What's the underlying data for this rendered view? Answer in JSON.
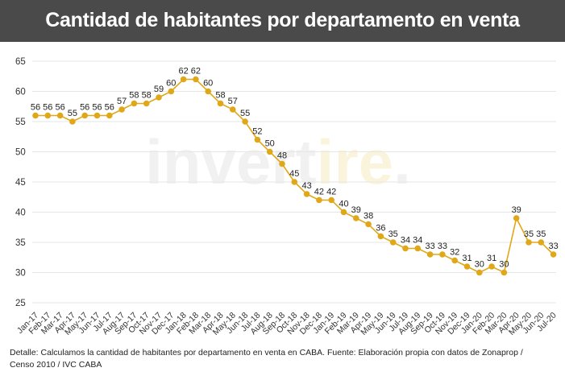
{
  "title": "Cantidad de habitantes por departamento en venta",
  "watermark": {
    "main": "invert",
    "accent": "ire",
    "dot": "."
  },
  "footer": {
    "line1": "Detalle: Calculamos la cantidad de habitantes por departamento en venta en CABA. Fuente: Elaboración propia con datos de Zonaprop /",
    "line2": "Censo 2010 / IVC CABA"
  },
  "colors": {
    "header_bg": "#4a4a4a",
    "line": "#e0a818",
    "marker": "#e0a818",
    "grid": "#e6e6e6"
  },
  "chart_data": {
    "type": "line",
    "categories": [
      "Jan-17",
      "Feb-17",
      "Mar-17",
      "Apr-17",
      "May-17",
      "Jun-17",
      "Jul-17",
      "Aug-17",
      "Sep-17",
      "Oct-17",
      "Nov-17",
      "Dec-17",
      "Jan-18",
      "Feb-18",
      "Mar-18",
      "Apr-18",
      "May-18",
      "Jun-18",
      "Jul-18",
      "Aug-18",
      "Sep-18",
      "Oct-18",
      "Nov-18",
      "Dec-18",
      "Jan-19",
      "Feb-19",
      "Mar-19",
      "Apr-19",
      "May-19",
      "Jun-19",
      "Jul-19",
      "Aug-19",
      "Sep-19",
      "Oct-19",
      "Nov-19",
      "Dec-19",
      "Jan-20",
      "Feb-20",
      "Mar-20",
      "Apr-20",
      "May-20",
      "Jun-20",
      "Jul-20"
    ],
    "values": [
      56,
      56,
      56,
      55,
      56,
      56,
      56,
      57,
      58,
      58,
      59,
      60,
      62,
      62,
      60,
      58,
      57,
      55,
      52,
      50,
      48,
      45,
      43,
      42,
      42,
      40,
      39,
      38,
      36,
      35,
      34,
      34,
      33,
      33,
      32,
      31,
      30,
      31,
      30,
      39,
      35,
      35,
      33
    ],
    "labels": [
      "56",
      "56",
      "56",
      "55",
      "56",
      "56",
      "56",
      "57",
      "58",
      "58",
      "59",
      "60",
      "62",
      "62",
      "60",
      "58",
      "57",
      "55",
      "52",
      "50",
      "48",
      "45",
      "43",
      "42",
      "42",
      "40",
      "39",
      "38",
      "36",
      "35",
      "34",
      "34",
      "33",
      "33",
      "32",
      "31",
      "30",
      "31",
      "30",
      "39",
      "35",
      "35",
      "33"
    ],
    "yticks": [
      "25",
      "30",
      "35",
      "40",
      "45",
      "50",
      "55",
      "60",
      "65"
    ],
    "ylim": [
      25,
      65
    ],
    "grid": true,
    "xlabel": "",
    "ylabel": ""
  }
}
